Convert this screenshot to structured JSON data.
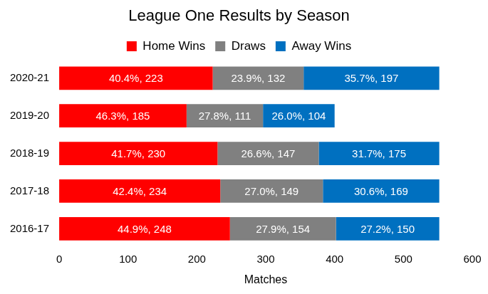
{
  "chart_data": {
    "type": "bar",
    "title": "League One Results by Season",
    "orientation": "horizontal",
    "stacked": true,
    "data_labels": true,
    "legend": "top",
    "grid": false,
    "categories": [
      "2020-21",
      "2019-20",
      "2018-19",
      "2017-18",
      "2016-17"
    ],
    "series": [
      {
        "name": "Home Wins",
        "color": "#ff0000",
        "values": [
          223,
          185,
          230,
          234,
          248
        ],
        "value_labels": [
          "40.4%, 223",
          "46.3%, 185",
          "41.7%, 230",
          "42.4%, 234",
          "44.9%, 248"
        ]
      },
      {
        "name": "Draws",
        "color": "#808080",
        "values": [
          132,
          111,
          147,
          149,
          154
        ],
        "value_labels": [
          "23.9%, 132",
          "27.8%, 111",
          "26.6%, 147",
          "27.0%, 149",
          "27.9%, 154"
        ]
      },
      {
        "name": "Away Wins",
        "color": "#0070c0",
        "values": [
          197,
          104,
          175,
          169,
          150
        ],
        "value_labels": [
          "35.7%, 197",
          "26.0%, 104",
          "31.7%, 175",
          "30.6%, 169",
          "27.2%, 150"
        ]
      }
    ],
    "x_label": "Matches",
    "xlim": [
      0,
      600
    ],
    "xticks": [
      0,
      100,
      200,
      300,
      400,
      500,
      600
    ]
  }
}
